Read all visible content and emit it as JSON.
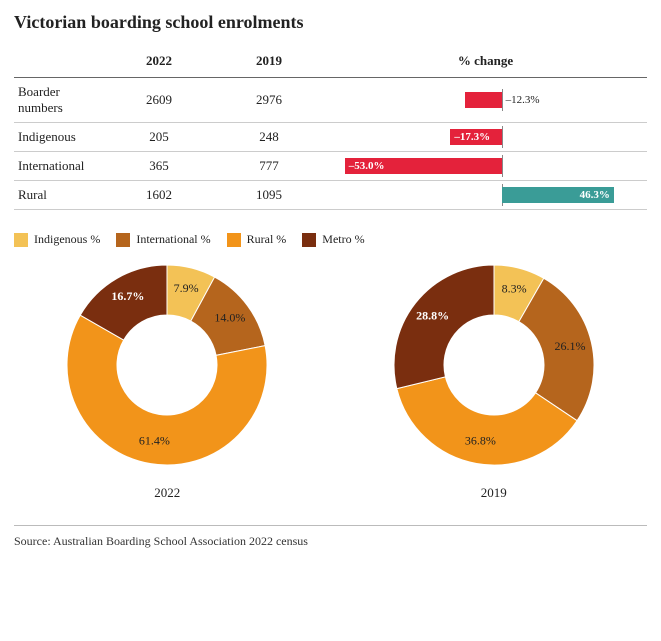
{
  "title": "Victorian boarding school enrolments",
  "colors": {
    "negative": "#e4223b",
    "positive": "#3a9c97",
    "axis": "#888888",
    "border": "#cccccc",
    "text": "#222222",
    "background": "#ffffff"
  },
  "table": {
    "columns": {
      "rowhead": "",
      "y2022": "2022",
      "y2019": "2019",
      "change": "% change"
    },
    "bar_axis_fraction": 0.55,
    "bar_domain": [
      -60,
      60
    ],
    "rows": [
      {
        "label": "Boarder numbers",
        "y2022": "2609",
        "y2019": "2976",
        "change": -12.3,
        "change_label": "–12.3%",
        "label_inside": false
      },
      {
        "label": "Indigenous",
        "y2022": "205",
        "y2019": "248",
        "change": -17.3,
        "change_label": "–17.3%",
        "label_inside": true
      },
      {
        "label": "International",
        "y2022": "365",
        "y2019": "777",
        "change": -53.0,
        "change_label": "–53.0%",
        "label_inside": true
      },
      {
        "label": "Rural",
        "y2022": "1602",
        "y2019": "1095",
        "change": 46.3,
        "change_label": "46.3%",
        "label_inside": true
      }
    ]
  },
  "legend": [
    {
      "label": "Indigenous %",
      "color": "#f3c256"
    },
    {
      "label": "International %",
      "color": "#b5651d"
    },
    {
      "label": "Rural %",
      "color": "#f2941a"
    },
    {
      "label": "Metro %",
      "color": "#7a2e0f"
    }
  ],
  "donuts": {
    "outer_radius": 100,
    "inner_radius": 50,
    "label_radius": 78,
    "start_angle": -90,
    "charts": [
      {
        "caption": "2022",
        "slices": [
          {
            "label": "7.9%",
            "value": 7.9,
            "color": "#f3c256",
            "label_color": "dark"
          },
          {
            "label": "14.0%",
            "value": 14.0,
            "color": "#b5651d",
            "label_color": "dark"
          },
          {
            "label": "61.4%",
            "value": 61.4,
            "color": "#f2941a",
            "label_color": "dark"
          },
          {
            "label": "16.7%",
            "value": 16.7,
            "color": "#7a2e0f",
            "label_color": "light"
          }
        ]
      },
      {
        "caption": "2019",
        "slices": [
          {
            "label": "8.3%",
            "value": 8.3,
            "color": "#f3c256",
            "label_color": "dark"
          },
          {
            "label": "26.1%",
            "value": 26.1,
            "color": "#b5651d",
            "label_color": "dark"
          },
          {
            "label": "36.8%",
            "value": 36.8,
            "color": "#f2941a",
            "label_color": "dark"
          },
          {
            "label": "28.8%",
            "value": 28.8,
            "color": "#7a2e0f",
            "label_color": "light"
          }
        ]
      }
    ]
  },
  "source": "Source: Australian Boarding School Association 2022 census"
}
